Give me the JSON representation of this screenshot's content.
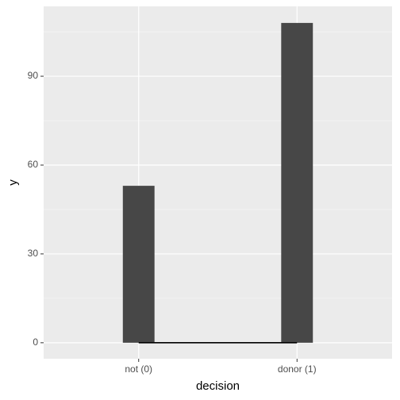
{
  "chart_data": {
    "type": "bar",
    "x_label": "decision",
    "y_label": "y",
    "categories": [
      "not (0)",
      "donor (1)"
    ],
    "values": [
      53,
      108
    ],
    "color": "#474747",
    "line": {
      "values": [
        0,
        0
      ],
      "color": "#000000"
    },
    "ylim": [
      -5.4,
      113.6
    ],
    "yticks": [
      0,
      30,
      60,
      90
    ],
    "minor_yticks": [
      15,
      45,
      75,
      105
    ],
    "grid": true
  }
}
